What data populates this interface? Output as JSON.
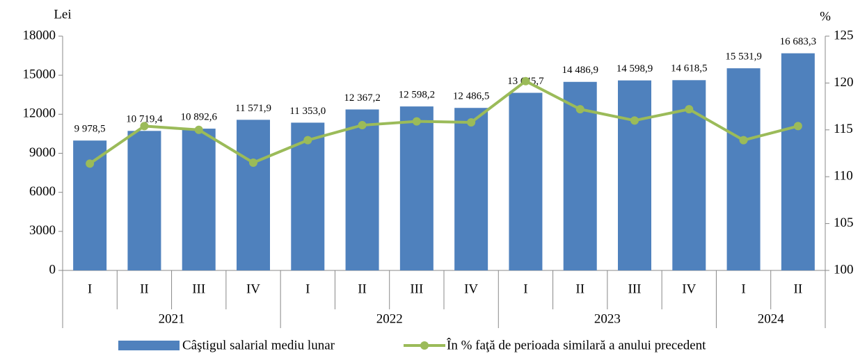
{
  "chart_data": {
    "type": "bar",
    "ylabel": "Lei",
    "y2label": "%",
    "categories": [
      "I",
      "II",
      "III",
      "IV",
      "I",
      "II",
      "III",
      "IV",
      "I",
      "II",
      "III",
      "IV",
      "I",
      "II"
    ],
    "years": [
      "2021",
      null,
      null,
      null,
      "2022",
      null,
      null,
      null,
      "2023",
      null,
      null,
      null,
      "2024",
      null
    ],
    "series": [
      {
        "name": "Câştigul salarial mediu lunar",
        "type": "bar",
        "color": "#4f81bd",
        "values": [
          9978.5,
          10719.4,
          10892.6,
          11571.9,
          11353.0,
          12367.2,
          12598.2,
          12486.5,
          13645.7,
          14486.9,
          14598.9,
          14618.5,
          15531.9,
          16683.3
        ],
        "value_labels": [
          "9 978,5",
          "10 719,4",
          "10 892,6",
          "11 571,9",
          "11 353,0",
          "12 367,2",
          "12 598,2",
          "12 486,5",
          "13 645,7",
          "14 486,9",
          "14 598,9",
          "14 618,5",
          "15 531,9",
          "16 683,3"
        ]
      },
      {
        "name": "În % faţă de perioada similară a anului precedent",
        "type": "line",
        "axis": "y2",
        "color": "#9bbb59",
        "values": [
          111.4,
          115.4,
          115.0,
          111.5,
          113.9,
          115.5,
          115.9,
          115.8,
          120.2,
          117.2,
          116.0,
          117.2,
          113.9,
          115.4
        ]
      }
    ],
    "ylim": [
      0,
      18000
    ],
    "yticks": [
      0,
      3000,
      6000,
      9000,
      12000,
      15000,
      18000
    ],
    "y2lim": [
      100,
      125
    ],
    "y2ticks": [
      100,
      105,
      110,
      115,
      120,
      125
    ]
  }
}
